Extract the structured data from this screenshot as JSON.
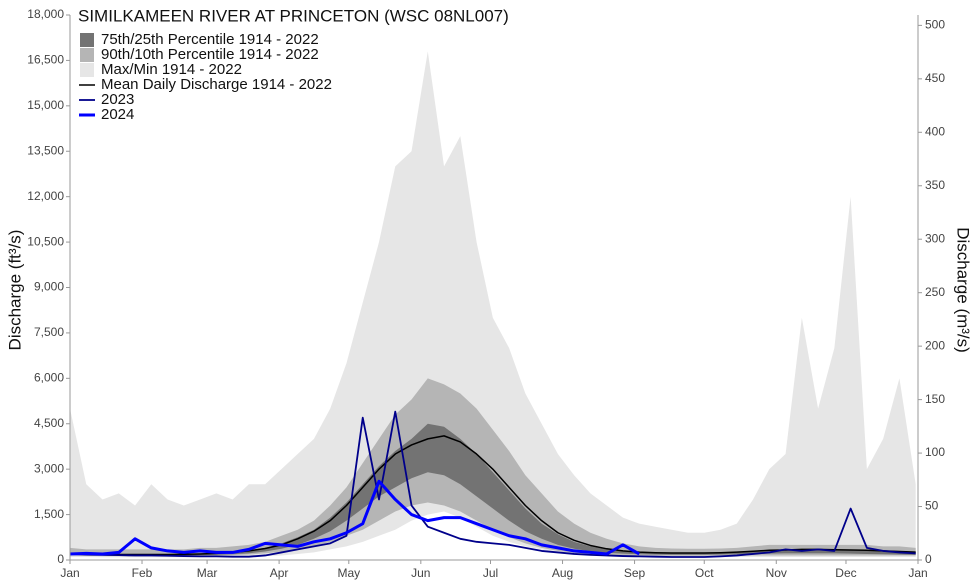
{
  "chart_data": {
    "type": "hydrograph",
    "title": "SIMILKAMEEN RIVER AT PRINCETON (WSC 08NL007)",
    "ylabel": "Discharge (ft³/s)",
    "y2label": "Discharge (m³/s)",
    "x": [
      0,
      7,
      14,
      21,
      28,
      35,
      42,
      49,
      56,
      63,
      70,
      77,
      84,
      91,
      98,
      105,
      112,
      119,
      126,
      133,
      140,
      147,
      154,
      161,
      168,
      175,
      182,
      189,
      196,
      203,
      210,
      217,
      224,
      231,
      238,
      245,
      252,
      259,
      266,
      273,
      280,
      287,
      294,
      301,
      308,
      315,
      322,
      329,
      336,
      343,
      350,
      357,
      364
    ],
    "xlim": [
      0,
      365
    ],
    "xticks": [
      {
        "value": 0,
        "label": "Jan"
      },
      {
        "value": 31,
        "label": "Feb"
      },
      {
        "value": 59,
        "label": "Mar"
      },
      {
        "value": 90,
        "label": "Apr"
      },
      {
        "value": 120,
        "label": "May"
      },
      {
        "value": 151,
        "label": "Jun"
      },
      {
        "value": 181,
        "label": "Jul"
      },
      {
        "value": 212,
        "label": "Aug"
      },
      {
        "value": 243,
        "label": "Sep"
      },
      {
        "value": 273,
        "label": "Oct"
      },
      {
        "value": 304,
        "label": "Nov"
      },
      {
        "value": 334,
        "label": "Dec"
      },
      {
        "value": 365,
        "label": "Jan"
      }
    ],
    "ylim": [
      0,
      18000
    ],
    "yticks": [
      0,
      {
        "value": 1500,
        "label": "1,500"
      },
      {
        "value": 3000,
        "label": "3,000"
      },
      {
        "value": 4500,
        "label": "4,500"
      },
      {
        "value": 6000,
        "label": "6,000"
      },
      {
        "value": 7500,
        "label": "7,500"
      },
      {
        "value": 9000,
        "label": "9,000"
      },
      {
        "value": 10500,
        "label": "10,500"
      },
      {
        "value": 12000,
        "label": "12,000"
      },
      {
        "value": 13500,
        "label": "13,500"
      },
      {
        "value": 15000,
        "label": "15,000"
      },
      {
        "value": 16500,
        "label": "16,500"
      },
      {
        "value": 18000,
        "label": "18,000"
      }
    ],
    "y2lim": [
      0,
      509.7
    ],
    "y2ticks": [
      0,
      50,
      100,
      150,
      200,
      250,
      300,
      350,
      400,
      450,
      500
    ],
    "bands": [
      {
        "name": "75th/25th Percentile 1914 - 2022",
        "color": "#737373",
        "upper": [
          250,
          220,
          210,
          200,
          200,
          200,
          200,
          210,
          220,
          240,
          270,
          320,
          400,
          550,
          750,
          1000,
          1400,
          1900,
          2500,
          3100,
          3600,
          4000,
          4500,
          4400,
          4000,
          3500,
          2900,
          2300,
          1700,
          1200,
          850,
          600,
          450,
          350,
          300,
          270,
          250,
          240,
          240,
          240,
          250,
          270,
          300,
          320,
          330,
          340,
          340,
          340,
          330,
          320,
          300,
          280,
          260
        ],
        "lower": [
          170,
          160,
          150,
          150,
          150,
          150,
          150,
          150,
          160,
          170,
          190,
          220,
          280,
          370,
          500,
          700,
          950,
          1300,
          1700,
          2100,
          2400,
          2700,
          2900,
          2800,
          2500,
          2100,
          1700,
          1300,
          950,
          700,
          500,
          370,
          290,
          240,
          210,
          190,
          180,
          175,
          175,
          175,
          180,
          190,
          200,
          210,
          220,
          220,
          220,
          220,
          210,
          200,
          190,
          180,
          170
        ]
      },
      {
        "name": "90th/10th Percentile 1914 - 2022",
        "color": "#b5b5b5",
        "upper": [
          400,
          350,
          350,
          350,
          350,
          350,
          350,
          350,
          400,
          400,
          450,
          500,
          600,
          800,
          1000,
          1300,
          1800,
          2400,
          3200,
          4000,
          4800,
          5300,
          6000,
          5800,
          5500,
          5000,
          4300,
          3600,
          2800,
          2200,
          1600,
          1200,
          900,
          700,
          550,
          450,
          400,
          380,
          370,
          370,
          380,
          400,
          450,
          500,
          500,
          500,
          500,
          500,
          500,
          500,
          450,
          450,
          400
        ],
        "lower": [
          150,
          140,
          130,
          130,
          130,
          130,
          130,
          130,
          140,
          150,
          160,
          180,
          220,
          280,
          350,
          450,
          600,
          800,
          1000,
          1300,
          1600,
          1800,
          1900,
          1800,
          1600,
          1300,
          1000,
          750,
          550,
          400,
          300,
          230,
          190,
          170,
          150,
          140,
          140,
          140,
          140,
          140,
          140,
          150,
          150,
          150,
          150,
          150,
          150,
          150,
          150,
          150,
          150,
          150,
          150
        ]
      },
      {
        "name": "Max/Min 1914 - 2022",
        "color": "#e6e6e6",
        "upper": [
          5000,
          2500,
          2000,
          2200,
          1800,
          2500,
          2000,
          1800,
          2000,
          2200,
          2000,
          2500,
          2500,
          3000,
          3500,
          4000,
          5000,
          6500,
          8500,
          10500,
          13000,
          13500,
          16800,
          13000,
          14000,
          10500,
          8000,
          7000,
          5500,
          4500,
          3500,
          2800,
          2200,
          1800,
          1400,
          1200,
          1100,
          1000,
          900,
          900,
          1000,
          1200,
          2000,
          3000,
          3500,
          8000,
          5000,
          7000,
          12000,
          3000,
          4000,
          6000,
          2500
        ],
        "lower": [
          100,
          100,
          90,
          90,
          90,
          90,
          90,
          90,
          90,
          100,
          100,
          110,
          130,
          150,
          200,
          250,
          350,
          450,
          600,
          800,
          1000,
          1300,
          1500,
          1600,
          1400,
          1100,
          800,
          600,
          450,
          350,
          250,
          200,
          150,
          130,
          110,
          100,
          100,
          100,
          100,
          100,
          100,
          100,
          100,
          100,
          100,
          100,
          100,
          100,
          100,
          100,
          100,
          100,
          100
        ]
      }
    ],
    "series": [
      {
        "name": "Mean Daily Discharge 1914 - 2022",
        "color": "#000000",
        "width": 1.5,
        "values": [
          200,
          190,
          180,
          180,
          180,
          180,
          180,
          190,
          200,
          220,
          250,
          300,
          380,
          500,
          700,
          950,
          1300,
          1800,
          2400,
          3000,
          3500,
          3800,
          4000,
          4100,
          3900,
          3500,
          3000,
          2400,
          1800,
          1300,
          900,
          650,
          480,
          370,
          300,
          260,
          240,
          230,
          230,
          230,
          240,
          260,
          290,
          320,
          330,
          350,
          350,
          340,
          330,
          320,
          300,
          280,
          260
        ]
      },
      {
        "name": "2023",
        "color": "#00008b",
        "width": 1.8,
        "values": [
          200,
          180,
          170,
          160,
          150,
          150,
          140,
          130,
          120,
          120,
          110,
          110,
          150,
          250,
          350,
          450,
          550,
          800,
          4700,
          2000,
          4900,
          1800,
          1100,
          900,
          700,
          600,
          550,
          500,
          400,
          300,
          250,
          200,
          170,
          150,
          130,
          120,
          110,
          100,
          100,
          100,
          120,
          150,
          200,
          250,
          350,
          300,
          350,
          300,
          1700,
          400,
          300,
          250,
          220
        ]
      },
      {
        "name": "2024",
        "color": "#0000ff",
        "width": 3,
        "values": [
          200,
          220,
          200,
          250,
          700,
          400,
          300,
          250,
          300,
          250,
          250,
          350,
          550,
          500,
          450,
          600,
          700,
          900,
          1200,
          2600,
          2000,
          1500,
          1300,
          1400,
          1400,
          1200,
          1000,
          800,
          700,
          500,
          400,
          300,
          250,
          200,
          500,
          200,
          null,
          null,
          null,
          null,
          null,
          null,
          null,
          null,
          null,
          null,
          null,
          null,
          null,
          null,
          null,
          null,
          null
        ]
      }
    ]
  }
}
